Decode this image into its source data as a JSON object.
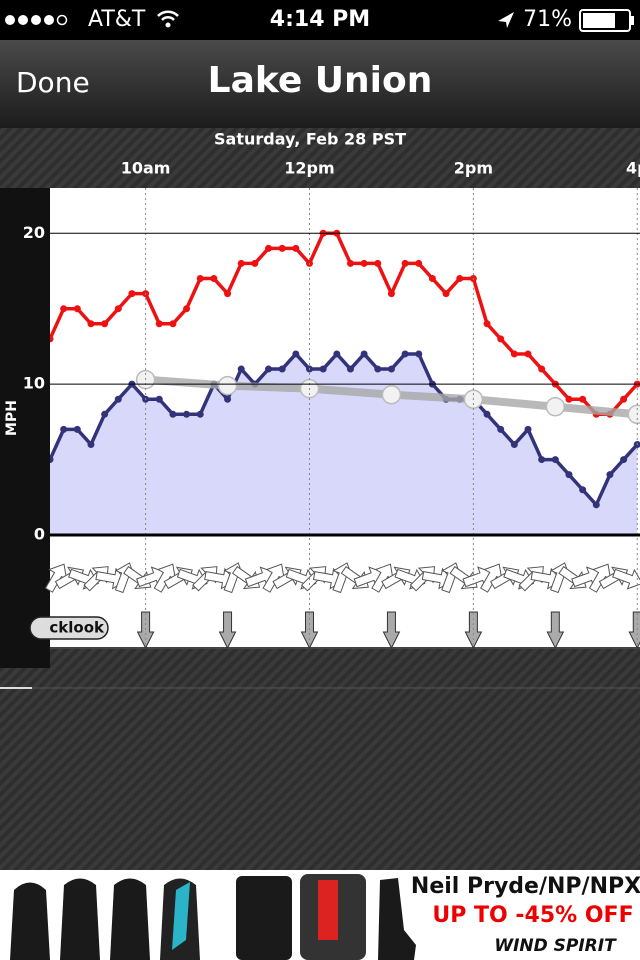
{
  "status_bar": {
    "carrier": "AT&T",
    "time": "4:14 PM",
    "battery": "71%"
  },
  "nav": {
    "back": "Done",
    "title": "Lake Union"
  },
  "quicklook": "cklook",
  "ad": {
    "headline": "Neil Pryde/NP/NPX",
    "offer": "UP TO -45% OFF",
    "brand": "WIND SPIRIT"
  },
  "chart_data": {
    "type": "line",
    "title": "Saturday, Feb 28 PST",
    "y_label": "MPH",
    "xlim": [
      530,
      962
    ],
    "xticks": [
      {
        "value": 600,
        "label": "10am"
      },
      {
        "value": 720,
        "label": "12pm"
      },
      {
        "value": 840,
        "label": "2pm"
      },
      {
        "value": 960,
        "label": "4p"
      }
    ],
    "ylim": [
      0,
      23
    ],
    "yticks": [
      0,
      10,
      20
    ],
    "grid": true,
    "x": [
      530,
      540,
      550,
      560,
      570,
      580,
      590,
      600,
      610,
      620,
      630,
      640,
      650,
      660,
      670,
      680,
      690,
      700,
      710,
      720,
      730,
      740,
      750,
      760,
      770,
      780,
      790,
      800,
      810,
      820,
      830,
      840,
      850,
      860,
      870,
      880,
      890,
      900,
      910,
      920,
      930,
      940,
      950,
      960
    ],
    "series": [
      {
        "color": "#ee1111",
        "values": [
          13,
          15,
          15,
          14,
          14,
          15,
          16,
          16,
          14,
          14,
          15,
          17,
          17,
          16,
          18,
          18,
          19,
          19,
          19,
          18,
          20,
          20,
          18,
          18,
          18,
          16,
          18,
          18,
          17,
          16,
          17,
          17,
          14,
          13,
          12,
          12,
          11,
          10,
          9,
          9,
          8,
          8,
          9,
          10
        ]
      },
      {
        "color": "#33337a",
        "fill": "#d8d8fb",
        "values": [
          5,
          7,
          7,
          6,
          8,
          9,
          10,
          9,
          9,
          8,
          8,
          8,
          10,
          9,
          11,
          10,
          11,
          11,
          12,
          11,
          11,
          12,
          11,
          12,
          11,
          11,
          12,
          12,
          10,
          9,
          9,
          9,
          8,
          7,
          6,
          7,
          5,
          5,
          4,
          3,
          2,
          4,
          5,
          6
        ]
      },
      {
        "color": "#a8a8a8",
        "x": [
          600,
          660,
          720,
          780,
          840,
          900,
          960
        ],
        "values": [
          10.3,
          9.9,
          9.7,
          9.3,
          9,
          8.5,
          8
        ]
      }
    ]
  }
}
